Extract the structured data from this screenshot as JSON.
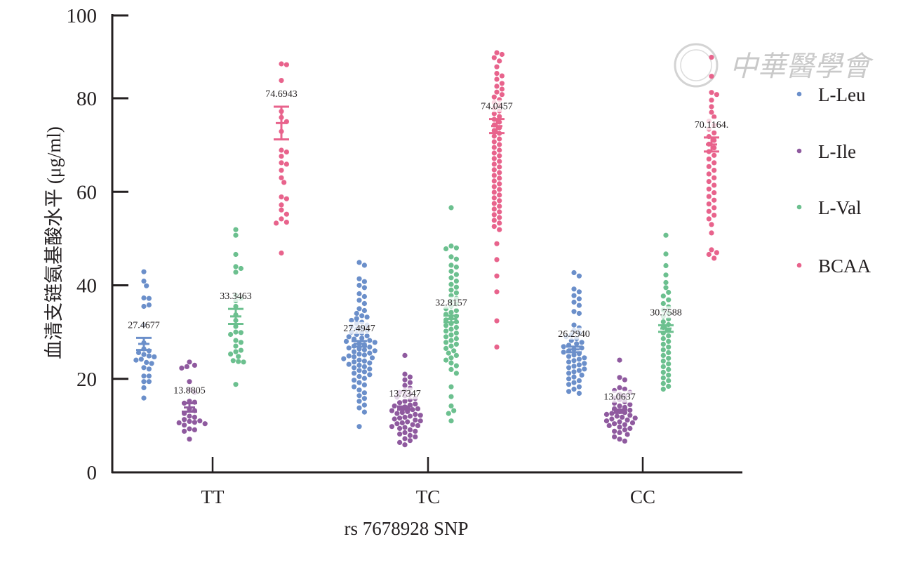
{
  "chart_data": {
    "type": "scatter",
    "subtype": "grouped-dot-plot-with-mean-and-sem",
    "title": "",
    "xlabel": "rs 7678928 SNP",
    "ylabel": "血清支链氨基酸水平 (μg/ml)",
    "ylim": [
      0,
      100
    ],
    "yticks": [
      0,
      20,
      40,
      60,
      80,
      100
    ],
    "categories": [
      "TT",
      "TC",
      "CC"
    ],
    "legend_position": "right",
    "watermark": "中華醫學會",
    "series": [
      {
        "name": "L-Leu",
        "color": "#6b8fca",
        "means": [
          27.4677,
          27.4947,
          26.294
        ],
        "mean_labels": [
          "27.4677",
          "27.4947",
          "26.2940"
        ],
        "sem": [
          1.3,
          0.6,
          0.6
        ],
        "points": [
          [
            42.9,
            40.9,
            39.9,
            37.3,
            37.2,
            35.5,
            35.8,
            31.5,
            27.7,
            26.4,
            26.0,
            25.6,
            25.2,
            24.9,
            24.7,
            24.2,
            24.0,
            23.5,
            23.3,
            22.4,
            22.1,
            20.6,
            20.6,
            19.4,
            19.4,
            18.1,
            15.9
          ],
          [
            44.9,
            44.3,
            41.4,
            40.8,
            40.0,
            39.5,
            38.2,
            37.6,
            36.8,
            36.1,
            35.0,
            34.6,
            34.0,
            33.5,
            33.2,
            32.9,
            32.5,
            32.1,
            31.8,
            31.5,
            31.2,
            30.9,
            30.6,
            30.3,
            30.0,
            29.8,
            29.5,
            29.2,
            29.0,
            28.7,
            28.5,
            28.2,
            28.0,
            27.8,
            27.5,
            27.3,
            27.0,
            26.8,
            26.6,
            26.4,
            26.2,
            26.0,
            25.8,
            25.5,
            25.3,
            25.1,
            24.9,
            24.7,
            24.5,
            24.3,
            24.0,
            23.8,
            23.6,
            23.4,
            23.1,
            22.9,
            22.6,
            22.4,
            22.1,
            21.8,
            21.5,
            21.2,
            20.9,
            20.5,
            20.1,
            19.7,
            19.2,
            18.7,
            18.3,
            17.6,
            17.0,
            16.4,
            15.8,
            15.2,
            14.4,
            13.8,
            12.9,
            9.8
          ],
          [
            42.7,
            42.0,
            39.2,
            38.6,
            37.8,
            37.1,
            36.4,
            35.7,
            34.4,
            34.0,
            31.5,
            30.9,
            30.4,
            29.8,
            29.4,
            29.0,
            28.6,
            28.2,
            27.8,
            27.5,
            27.2,
            26.9,
            26.6,
            26.3,
            26.0,
            25.7,
            25.4,
            25.1,
            24.8,
            24.5,
            24.2,
            23.9,
            23.6,
            23.3,
            23.0,
            22.7,
            22.4,
            22.1,
            21.8,
            21.5,
            21.2,
            20.8,
            20.4,
            20.0,
            19.6,
            19.2,
            18.8,
            18.3,
            17.8,
            17.3,
            16.9
          ]
        ]
      },
      {
        "name": "L-Ile",
        "color": "#8f5a9f",
        "means": [
          13.8805,
          13.7347,
          13.0637
        ],
        "mean_labels": [
          "13.8805",
          "13.7347",
          "13.0637"
        ],
        "sem": [
          0.9,
          0.35,
          0.35
        ],
        "points": [
          [
            23.6,
            22.9,
            22.6,
            22.3,
            19.4,
            17.7,
            17.1,
            15.2,
            15.0,
            14.8,
            13.5,
            13.2,
            12.6,
            12.0,
            11.8,
            11.3,
            11.0,
            10.9,
            10.7,
            10.6,
            10.4,
            10.1,
            9.3,
            9.1,
            8.8,
            7.1
          ],
          [
            25.0,
            21.0,
            20.4,
            19.8,
            19.2,
            18.6,
            18.0,
            17.5,
            17.1,
            16.7,
            16.4,
            16.1,
            15.8,
            15.5,
            15.2,
            14.9,
            14.6,
            14.4,
            14.2,
            14.0,
            13.8,
            13.6,
            13.4,
            13.2,
            13.0,
            12.8,
            12.6,
            12.4,
            12.2,
            12.0,
            11.8,
            11.6,
            11.4,
            11.2,
            11.0,
            10.8,
            10.6,
            10.4,
            10.2,
            10.0,
            9.8,
            9.6,
            9.4,
            9.1,
            8.8,
            8.5,
            8.2,
            7.9,
            7.6,
            7.2,
            6.8,
            6.4,
            5.9
          ],
          [
            24.0,
            20.3,
            19.8,
            18.1,
            17.8,
            17.5,
            17.1,
            16.7,
            16.3,
            15.9,
            15.5,
            15.1,
            14.8,
            14.5,
            14.2,
            13.9,
            13.6,
            13.3,
            13.0,
            12.8,
            12.6,
            12.4,
            12.2,
            12.0,
            11.8,
            11.6,
            11.4,
            11.2,
            11.0,
            10.8,
            10.6,
            10.4,
            10.2,
            10.0,
            9.7,
            9.4,
            9.1,
            8.8,
            8.5,
            8.1,
            7.6,
            7.1,
            6.7
          ]
        ]
      },
      {
        "name": "L-Val",
        "color": "#6cc08f",
        "means": [
          33.3463,
          32.8157,
          30.7588
        ],
        "mean_labels": [
          "33.3463",
          "32.8157",
          "30.7588"
        ],
        "sem": [
          1.6,
          0.7,
          0.7
        ],
        "points": [
          [
            51.9,
            50.7,
            46.6,
            44.0,
            43.6,
            42.8,
            37.9,
            37.2,
            36.7,
            35.5,
            33.7,
            32.5,
            31.2,
            30.0,
            29.9,
            29.5,
            28.2,
            27.8,
            27.0,
            26.1,
            25.8,
            25.3,
            24.8,
            23.9,
            23.7,
            23.6,
            18.8
          ],
          [
            56.6,
            48.4,
            48.0,
            47.8,
            46.1,
            45.6,
            44.3,
            43.9,
            43.0,
            42.3,
            41.6,
            40.9,
            40.2,
            39.6,
            39.0,
            38.4,
            37.8,
            37.2,
            36.6,
            36.0,
            35.5,
            35.0,
            34.6,
            34.2,
            33.8,
            33.4,
            33.0,
            32.6,
            32.2,
            31.8,
            31.4,
            31.0,
            30.6,
            30.2,
            29.8,
            29.4,
            29.0,
            28.6,
            28.2,
            27.8,
            27.4,
            27.0,
            26.5,
            26.0,
            25.5,
            25.0,
            24.5,
            24.0,
            23.4,
            22.8,
            22.0,
            21.2,
            18.3,
            16.2,
            14.2,
            13.2,
            12.6,
            11.0
          ],
          [
            50.7,
            46.7,
            44.2,
            42.2,
            40.6,
            39.5,
            38.5,
            37.7,
            36.9,
            36.1,
            35.4,
            34.7,
            34.0,
            33.4,
            32.8,
            32.2,
            31.6,
            31.0,
            30.4,
            29.8,
            29.2,
            28.6,
            28.0,
            27.4,
            26.8,
            26.2,
            25.6,
            25.0,
            24.4,
            23.8,
            23.2,
            22.6,
            22.0,
            21.4,
            20.8,
            20.2,
            19.6,
            19.0,
            18.4,
            17.8
          ]
        ]
      },
      {
        "name": "BCAA",
        "color": "#e8638c",
        "means": [
          74.6943,
          74.0457,
          70.1164
        ],
        "mean_labels": [
          "74.6943",
          "74.0457",
          "70.1164."
        ],
        "sem": [
          3.5,
          1.5,
          1.5
        ],
        "points": [
          [
            88.3,
            88.1,
            84.3,
            77.2,
            75.9,
            75.0,
            72.9,
            68.9,
            68.5,
            67.6,
            66.2,
            65.9,
            64.6,
            63.0,
            62.0,
            58.9,
            58.5,
            57.2,
            56.1,
            55.2,
            54.2,
            53.5,
            53.3,
            46.9
          ],
          [
            91.0,
            90.6,
            89.8,
            89.0,
            87.6,
            86.0,
            85.4,
            84.6,
            83.6,
            82.9,
            82.2,
            81.5,
            80.9,
            80.3,
            79.7,
            79.1,
            78.5,
            77.9,
            77.3,
            76.7,
            76.1,
            75.5,
            74.9,
            74.3,
            73.7,
            73.1,
            72.5,
            71.9,
            71.3,
            70.7,
            70.1,
            69.5,
            68.9,
            68.3,
            67.7,
            67.1,
            66.5,
            65.9,
            65.3,
            64.7,
            64.1,
            63.5,
            62.9,
            62.3,
            61.7,
            61.1,
            60.5,
            59.9,
            59.3,
            58.7,
            58.1,
            57.5,
            56.9,
            56.3,
            55.7,
            55.1,
            54.5,
            53.9,
            53.3,
            52.6,
            51.9,
            48.9,
            45.5,
            42.0,
            38.6,
            32.4,
            26.8
          ],
          [
            89.9,
            85.3,
            81.4,
            80.9,
            79.6,
            78.2,
            77.0,
            76.0,
            75.1,
            74.2,
            73.4,
            72.6,
            71.8,
            71.0,
            70.2,
            69.4,
            68.6,
            67.8,
            67.0,
            66.2,
            65.4,
            64.6,
            63.8,
            63.0,
            62.2,
            61.4,
            60.6,
            59.8,
            59.0,
            58.2,
            57.4,
            56.6,
            55.8,
            55.0,
            54.2,
            53.0,
            51.2,
            47.6,
            47.0,
            46.6,
            45.8
          ]
        ]
      }
    ]
  }
}
